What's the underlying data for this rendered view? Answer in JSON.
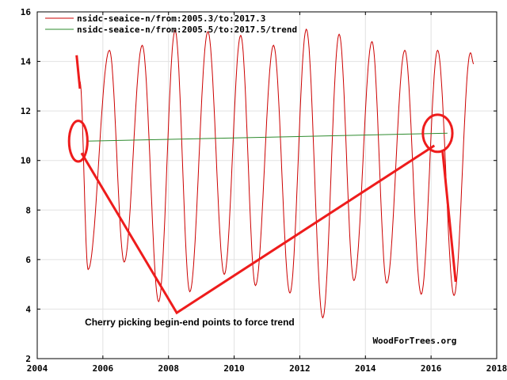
{
  "chart_data": {
    "type": "line",
    "xlim": [
      2004,
      2018
    ],
    "ylim": [
      2,
      16
    ],
    "x_ticks": [
      2004,
      2006,
      2008,
      2010,
      2012,
      2014,
      2016,
      2018
    ],
    "y_ticks": [
      2,
      4,
      6,
      8,
      10,
      12,
      14,
      16
    ],
    "x_tick_labels": [
      "2004",
      "2006",
      "2008",
      "2010",
      "2012",
      "2014",
      "2016",
      "2018"
    ],
    "y_tick_labels": [
      "2",
      "4",
      "6",
      "8",
      "10",
      "12",
      "14",
      "16"
    ],
    "grid": true,
    "legend_position": "top-left",
    "series": [
      {
        "name": "nsidc-seaice-n/from:2005.3/to:2017.3",
        "color": "#cc0000",
        "kind": "seasonal",
        "x_range": [
          2005.3,
          2017.3
        ],
        "extremes": [
          {
            "x": 2005.55,
            "y": 5.6
          },
          {
            "x": 2006.2,
            "y": 14.45
          },
          {
            "x": 2006.65,
            "y": 5.9
          },
          {
            "x": 2007.2,
            "y": 14.65
          },
          {
            "x": 2007.7,
            "y": 4.3
          },
          {
            "x": 2008.2,
            "y": 15.25
          },
          {
            "x": 2008.65,
            "y": 4.7
          },
          {
            "x": 2009.2,
            "y": 15.2
          },
          {
            "x": 2009.7,
            "y": 5.4
          },
          {
            "x": 2010.2,
            "y": 15.05
          },
          {
            "x": 2010.65,
            "y": 4.95
          },
          {
            "x": 2011.2,
            "y": 14.65
          },
          {
            "x": 2011.7,
            "y": 4.65
          },
          {
            "x": 2012.2,
            "y": 15.3
          },
          {
            "x": 2012.7,
            "y": 3.65
          },
          {
            "x": 2013.2,
            "y": 15.1
          },
          {
            "x": 2013.65,
            "y": 5.15
          },
          {
            "x": 2014.2,
            "y": 14.8
          },
          {
            "x": 2014.65,
            "y": 5.05
          },
          {
            "x": 2015.2,
            "y": 14.45
          },
          {
            "x": 2015.7,
            "y": 4.6
          },
          {
            "x": 2016.2,
            "y": 14.45
          },
          {
            "x": 2016.7,
            "y": 4.55
          },
          {
            "x": 2017.2,
            "y": 14.35
          }
        ],
        "start": {
          "x": 2005.3,
          "y": 13.2
        },
        "end": {
          "x": 2017.3,
          "y": 13.9
        }
      },
      {
        "name": "nsidc-seaice-n/from:2005.5/to:2017.5/trend",
        "color": "#2e8b2e",
        "kind": "trend",
        "x": [
          2005.5,
          2016.5
        ],
        "y": [
          10.78,
          11.1
        ]
      }
    ],
    "annotations": [
      {
        "kind": "circle",
        "center": {
          "x": 2005.25,
          "y": 10.78
        },
        "radius_x_years": 0.28,
        "radius_y_units": 0.82
      },
      {
        "kind": "circle",
        "center": {
          "x": 2016.2,
          "y": 11.1
        },
        "radius_x_years": 0.45,
        "radius_y_units": 0.75
      },
      {
        "kind": "polyline",
        "points": [
          {
            "x": 2005.2,
            "y": 14.25
          },
          {
            "x": 2005.3,
            "y": 12.9
          }
        ]
      },
      {
        "kind": "polyline",
        "points": [
          {
            "x": 2005.35,
            "y": 10.3
          },
          {
            "x": 2008.25,
            "y": 3.85
          },
          {
            "x": 2016.1,
            "y": 10.6
          }
        ]
      },
      {
        "kind": "polyline",
        "points": [
          {
            "x": 2016.35,
            "y": 10.4
          },
          {
            "x": 2016.75,
            "y": 5.1
          }
        ]
      }
    ],
    "annotation_text": "Cherry picking begin-end points to force trend",
    "annotation_anchor": {
      "x": 2005.45,
      "y": 3.35
    },
    "credit": "WoodForTrees.org",
    "credit_anchor": {
      "x": 2015.5,
      "y": 2.6
    }
  }
}
